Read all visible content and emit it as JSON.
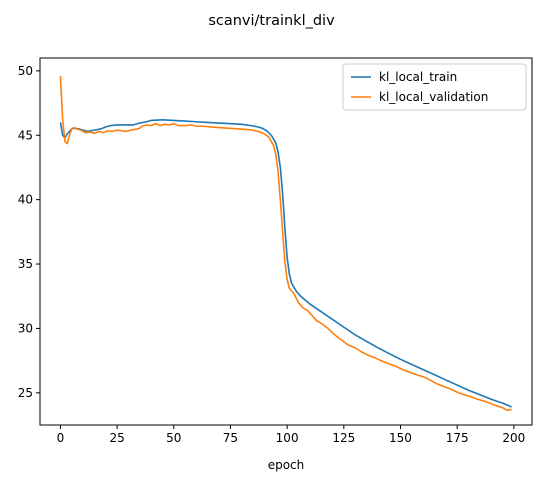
{
  "chart_data": {
    "type": "line",
    "title": "scanvi/trainkl_div",
    "xlabel": "epoch",
    "ylabel": "",
    "xlim": [
      -9,
      208
    ],
    "ylim": [
      22.5,
      51
    ],
    "x_ticks": [
      0,
      25,
      50,
      75,
      100,
      125,
      150,
      175,
      200
    ],
    "y_ticks": [
      25,
      30,
      35,
      40,
      45,
      50
    ],
    "legend_position": "top-right",
    "grid": false,
    "series": [
      {
        "name": "kl_local_train",
        "color": "#1f77b4",
        "points": [
          [
            0,
            46.0
          ],
          [
            1,
            45.0
          ],
          [
            2,
            44.8
          ],
          [
            3,
            45.1
          ],
          [
            4,
            45.3
          ],
          [
            5,
            45.5
          ],
          [
            6,
            45.55
          ],
          [
            8,
            45.5
          ],
          [
            10,
            45.4
          ],
          [
            12,
            45.3
          ],
          [
            15,
            45.4
          ],
          [
            18,
            45.5
          ],
          [
            20,
            45.65
          ],
          [
            22,
            45.75
          ],
          [
            25,
            45.8
          ],
          [
            28,
            45.8
          ],
          [
            32,
            45.8
          ],
          [
            35,
            45.95
          ],
          [
            38,
            46.05
          ],
          [
            40,
            46.15
          ],
          [
            45,
            46.2
          ],
          [
            50,
            46.15
          ],
          [
            55,
            46.1
          ],
          [
            60,
            46.05
          ],
          [
            65,
            46.0
          ],
          [
            70,
            45.95
          ],
          [
            75,
            45.9
          ],
          [
            80,
            45.85
          ],
          [
            84,
            45.75
          ],
          [
            87,
            45.65
          ],
          [
            89,
            45.55
          ],
          [
            91,
            45.35
          ],
          [
            93,
            45.0
          ],
          [
            95,
            44.4
          ],
          [
            96,
            43.7
          ],
          [
            97,
            42.5
          ],
          [
            98,
            40.5
          ],
          [
            99,
            37.8
          ],
          [
            100,
            35.5
          ],
          [
            101,
            34.2
          ],
          [
            102,
            33.5
          ],
          [
            104,
            32.9
          ],
          [
            106,
            32.5
          ],
          [
            110,
            31.9
          ],
          [
            115,
            31.3
          ],
          [
            120,
            30.7
          ],
          [
            125,
            30.1
          ],
          [
            130,
            29.5
          ],
          [
            135,
            29.0
          ],
          [
            140,
            28.5
          ],
          [
            145,
            28.05
          ],
          [
            150,
            27.6
          ],
          [
            155,
            27.2
          ],
          [
            160,
            26.8
          ],
          [
            165,
            26.4
          ],
          [
            170,
            26.0
          ],
          [
            175,
            25.6
          ],
          [
            180,
            25.2
          ],
          [
            185,
            24.85
          ],
          [
            190,
            24.5
          ],
          [
            195,
            24.2
          ],
          [
            199,
            23.9
          ]
        ]
      },
      {
        "name": "kl_local_validation",
        "color": "#ff7f0e",
        "points": [
          [
            0,
            49.6
          ],
          [
            1,
            46.2
          ],
          [
            2,
            44.5
          ],
          [
            3,
            44.35
          ],
          [
            4,
            45.0
          ],
          [
            5,
            45.5
          ],
          [
            6,
            45.6
          ],
          [
            7,
            45.5
          ],
          [
            9,
            45.4
          ],
          [
            11,
            45.2
          ],
          [
            13,
            45.25
          ],
          [
            15,
            45.15
          ],
          [
            17,
            45.3
          ],
          [
            19,
            45.2
          ],
          [
            21,
            45.35
          ],
          [
            23,
            45.3
          ],
          [
            25,
            45.4
          ],
          [
            27,
            45.35
          ],
          [
            29,
            45.3
          ],
          [
            31,
            45.4
          ],
          [
            33,
            45.45
          ],
          [
            35,
            45.55
          ],
          [
            36,
            45.7
          ],
          [
            38,
            45.8
          ],
          [
            40,
            45.75
          ],
          [
            42,
            45.9
          ],
          [
            44,
            45.75
          ],
          [
            46,
            45.85
          ],
          [
            48,
            45.8
          ],
          [
            50,
            45.9
          ],
          [
            52,
            45.75
          ],
          [
            55,
            45.75
          ],
          [
            58,
            45.8
          ],
          [
            60,
            45.7
          ],
          [
            63,
            45.7
          ],
          [
            66,
            45.65
          ],
          [
            70,
            45.6
          ],
          [
            74,
            45.55
          ],
          [
            78,
            45.5
          ],
          [
            82,
            45.45
          ],
          [
            85,
            45.4
          ],
          [
            88,
            45.25
          ],
          [
            90,
            45.1
          ],
          [
            92,
            44.85
          ],
          [
            94,
            44.2
          ],
          [
            95,
            43.5
          ],
          [
            96,
            42.2
          ],
          [
            97,
            40.0
          ],
          [
            98,
            37.5
          ],
          [
            99,
            35.2
          ],
          [
            100,
            33.8
          ],
          [
            101,
            33.1
          ],
          [
            103,
            32.7
          ],
          [
            105,
            32.0
          ],
          [
            107,
            31.6
          ],
          [
            109,
            31.4
          ],
          [
            111,
            31.0
          ],
          [
            113,
            30.6
          ],
          [
            115,
            30.4
          ],
          [
            118,
            30.0
          ],
          [
            121,
            29.5
          ],
          [
            124,
            29.1
          ],
          [
            127,
            28.7
          ],
          [
            130,
            28.5
          ],
          [
            133,
            28.15
          ],
          [
            136,
            27.9
          ],
          [
            139,
            27.7
          ],
          [
            142,
            27.45
          ],
          [
            145,
            27.25
          ],
          [
            148,
            27.05
          ],
          [
            151,
            26.8
          ],
          [
            154,
            26.6
          ],
          [
            157,
            26.4
          ],
          [
            160,
            26.25
          ],
          [
            163,
            26.0
          ],
          [
            166,
            25.7
          ],
          [
            169,
            25.5
          ],
          [
            172,
            25.3
          ],
          [
            175,
            25.05
          ],
          [
            178,
            24.85
          ],
          [
            181,
            24.7
          ],
          [
            184,
            24.5
          ],
          [
            187,
            24.35
          ],
          [
            190,
            24.15
          ],
          [
            193,
            23.95
          ],
          [
            195,
            23.85
          ],
          [
            197,
            23.65
          ],
          [
            199,
            23.7
          ]
        ]
      }
    ]
  }
}
